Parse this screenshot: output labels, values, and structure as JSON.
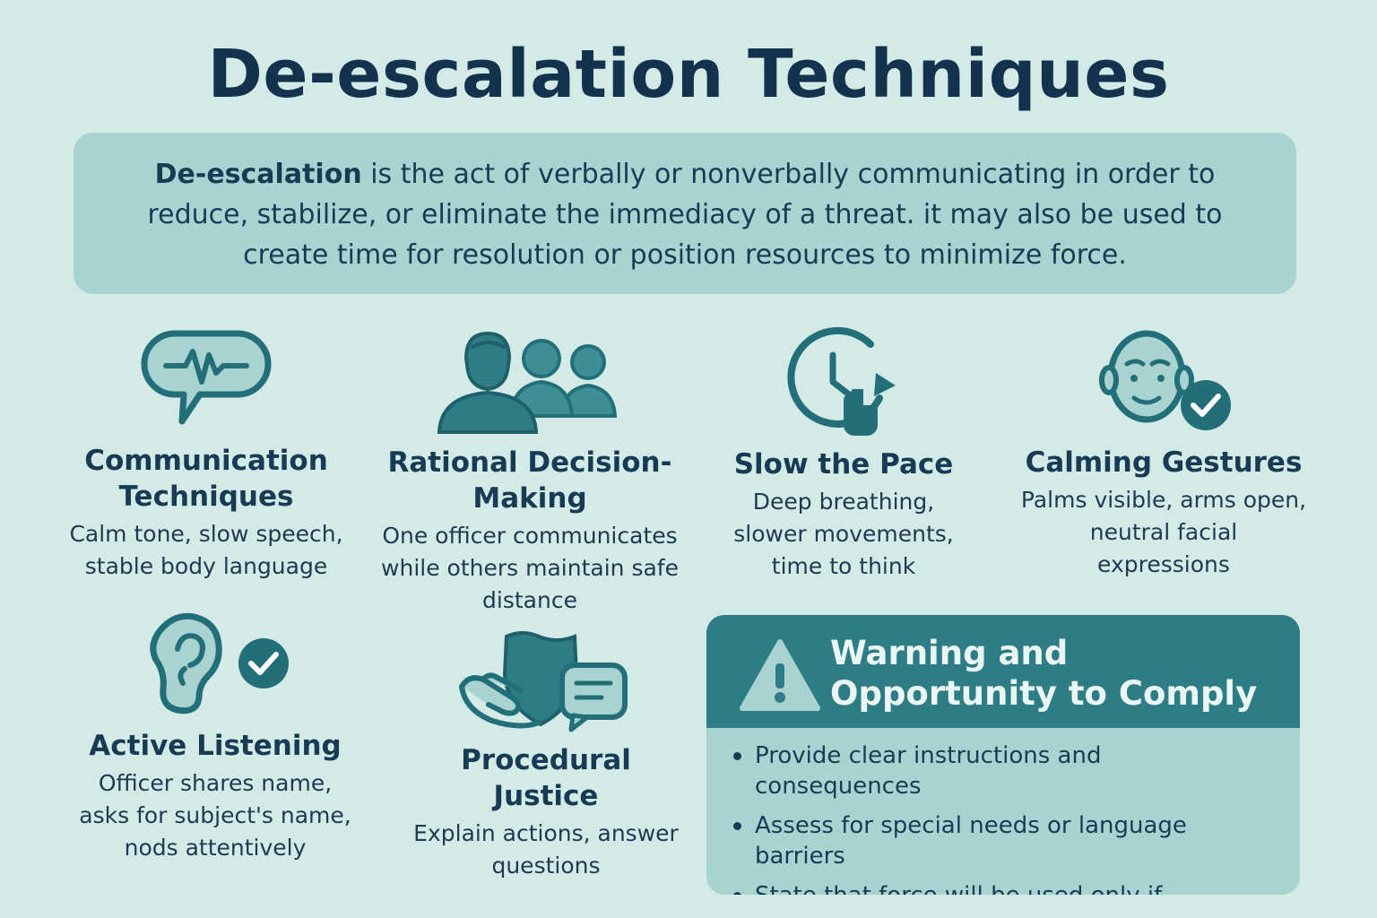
{
  "title": "De-escalation Techniques",
  "intro": {
    "term": "De-escalation",
    "text": " is the act of verbally or nonverbally communicating in order to reduce, stabilize, or eliminate the immediacy of a threat. it may also be used to create time for resolution or position resources to minimize force."
  },
  "cards": [
    {
      "icon": "speech-bubble-heartbeat-icon",
      "title": "Communication Techniques",
      "desc": "Calm tone, slow speech, stable body language"
    },
    {
      "icon": "group-of-officers-icon",
      "title": "Rational Decision-Making",
      "desc": "One officer communicates while others maintain safe distance"
    },
    {
      "icon": "clock-with-hand-icon",
      "title": "Slow the Pace",
      "desc": "Deep breathing, slower movements, time to think"
    },
    {
      "icon": "calm-face-check-icon",
      "title": "Calming Gestures",
      "desc": "Palms visible, arms open, neutral facial expressions"
    },
    {
      "icon": "ear-check-icon",
      "title": "Active Listening",
      "desc": "Officer shares name, asks for subject's name, nods attentively"
    },
    {
      "icon": "shield-hand-chat-icon",
      "title": "Procedural Justice",
      "desc": "Explain actions, answer questions"
    }
  ],
  "warning": {
    "icon": "warning-triangle-icon",
    "title": "Warning and Opportunity to Comply",
    "items": [
      "Provide clear instructions and consequences",
      "Assess for special needs or language barriers",
      "State that force will be used only if noncompliance continues"
    ]
  },
  "colors": {
    "background": "#d3eae6",
    "panel": "#a9d3d0",
    "teal": "#2e7d86",
    "navy": "#183b55"
  }
}
